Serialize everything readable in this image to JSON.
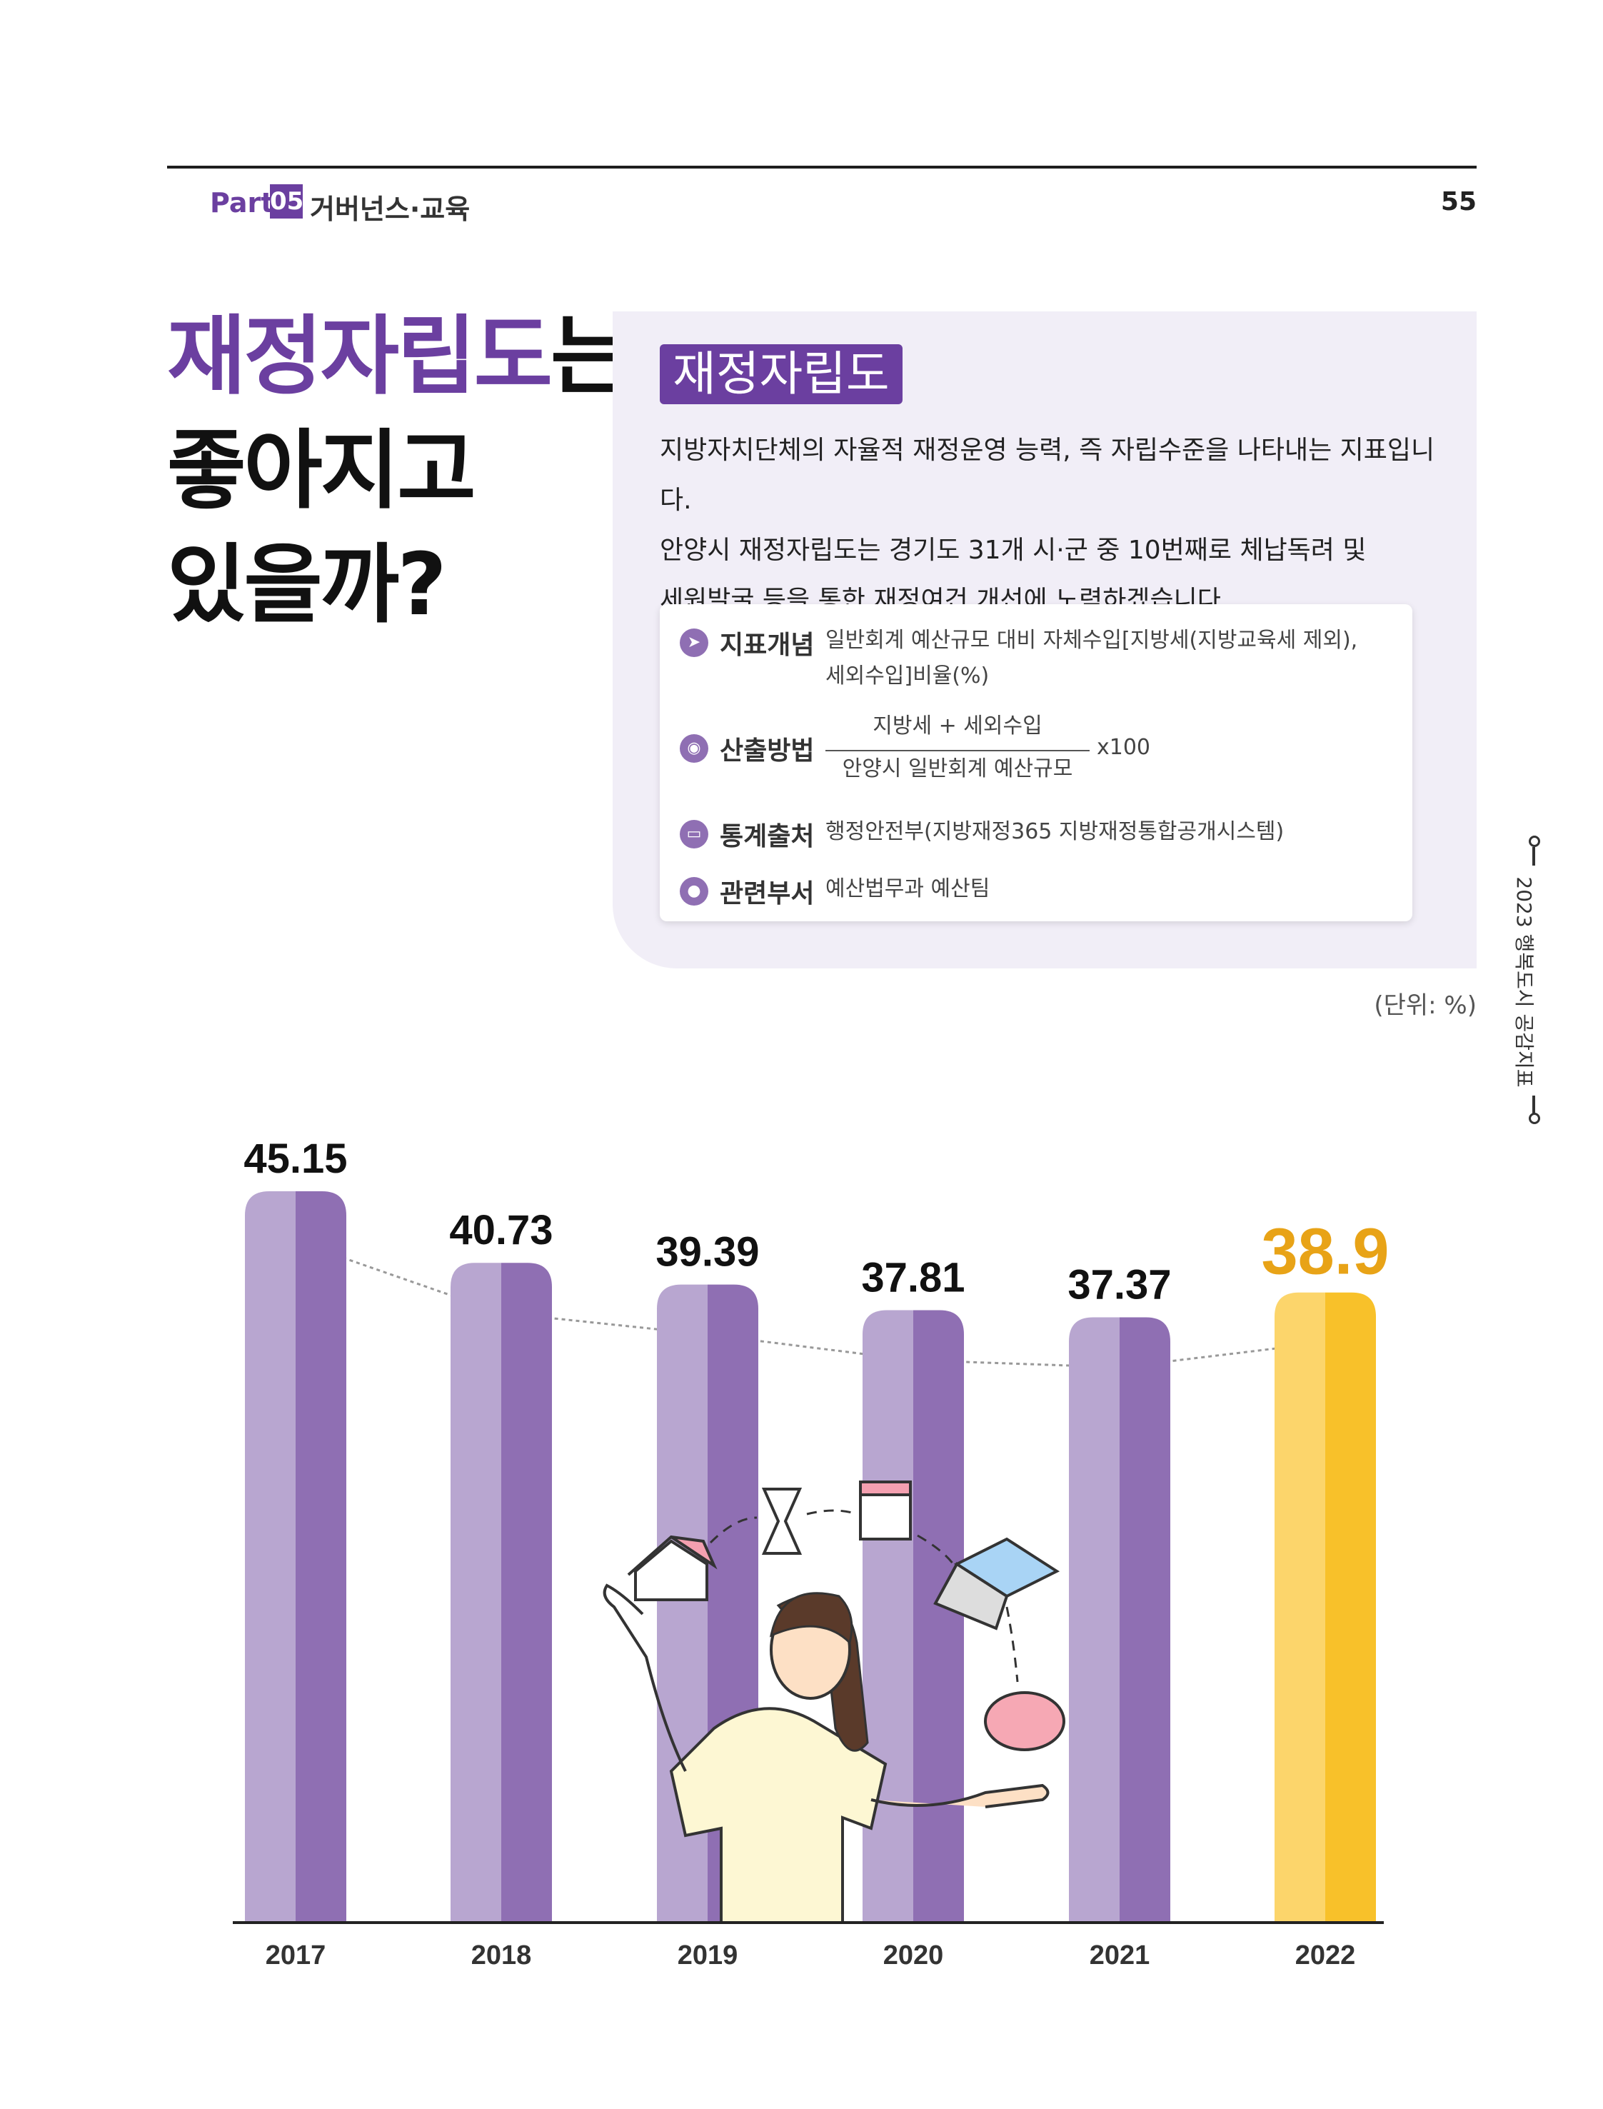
{
  "header": {
    "part_label": "Part",
    "part_number": "05",
    "part_title": "거버넌스·교육",
    "page_number": "55"
  },
  "headline": {
    "highlight": "재정자립도",
    "line1_rest": "는",
    "line2": "좋아지고",
    "line3": "있을까?"
  },
  "definition": {
    "term": "재정자립도",
    "description": [
      "지방자치단체의 자율적 재정운영 능력, 즉 자립수준을 나타내는 지표입니다.",
      "안양시 재정자립도는 경기도 31개 시·군 중 10번째로 체납독려 및",
      "세원발굴 등을 통한 재정여건 개선에 노력하겠습니다."
    ],
    "rows": {
      "concept": {
        "label": "지표개념",
        "text1": "일반회계 예산규모 대비 자체수입[지방세(지방교육세 제외),",
        "text2": "세외수입]비율(%)"
      },
      "method": {
        "label": "산출방법",
        "numerator": "지방세 + 세외수입",
        "denominator": "안양시 일반회계 예산규모",
        "multiplier": "x100"
      },
      "source": {
        "label": "통계출처",
        "text": "행정안전부(지방재정365 지방재정통합공개시스템)"
      },
      "dept": {
        "label": "관련부서",
        "text": "예산법무과 예산팀"
      }
    }
  },
  "side_label": "2023 행복도시 공감지표",
  "unit": "(단위: %)",
  "colors": {
    "purple": "#6b3fa0",
    "bar_light": "#b8a6d0",
    "bar_dark": "#8f6fb3",
    "highlight_light": "#fcd56b",
    "highlight_dark": "#f8c12a",
    "highlight_text": "#e8a317"
  },
  "chart_data": {
    "type": "bar",
    "categories": [
      "2017",
      "2018",
      "2019",
      "2020",
      "2021",
      "2022"
    ],
    "values": [
      45.15,
      40.73,
      39.39,
      37.81,
      37.37,
      38.9
    ],
    "value_labels": [
      "45.15",
      "40.73",
      "39.39",
      "37.81",
      "37.37",
      "38.9"
    ],
    "highlight_index": 5,
    "unit": "%",
    "grid": false,
    "trend_line": "dashed"
  }
}
